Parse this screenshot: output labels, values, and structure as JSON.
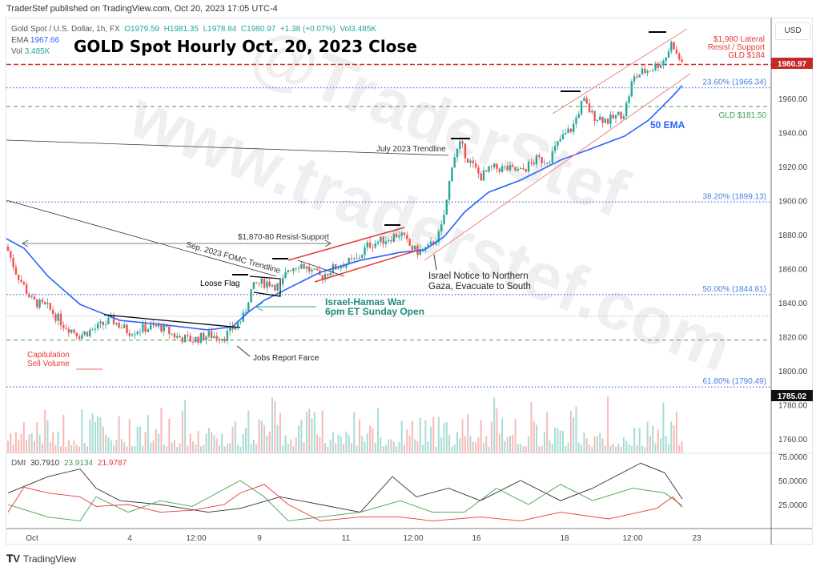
{
  "publisher_line": "TraderStef published on TradingView.com, Oct 20, 2023 17:05 UTC-4",
  "legend": {
    "symbol": "Gold Spot / U.S. Dollar, 1h, FX",
    "open": "O1979.59",
    "high": "H1981.35",
    "low": "L1978.84",
    "close": "C1980.97",
    "change": "+1.38 (+0.07%)",
    "vol": "Vol3.485K",
    "ema_label": "EMA",
    "ema_value": "1967.66",
    "vol_label": "Vol",
    "vol_value": "3.485K"
  },
  "currency_button": "USD",
  "watermark": [
    "@TraderStef",
    "www.traderstef.com"
  ],
  "footer_brand": "TradingView",
  "colors": {
    "up": "#26a69a",
    "down": "#ef5350",
    "ema": "#2962ff",
    "fib": "#4a7fe0",
    "resist": "#e53935",
    "gld": "#43a047"
  },
  "chart_data": {
    "type": "candlestick",
    "title": "GOLD Spot Hourly Oct. 20, 2023 Close",
    "y_ticks": [
      "1960.00",
      "1940.00",
      "1920.00",
      "1900.00",
      "1880.00",
      "1860.00",
      "1840.00",
      "1820.00",
      "1800.00",
      "1780.00",
      "1760.00"
    ],
    "ylim": [
      1752,
      2000
    ],
    "x_ticks": [
      "Oct",
      "4",
      "12:00",
      "9",
      "11",
      "12:00",
      "16",
      "18",
      "12:00",
      "23"
    ],
    "last_price": "1980.97",
    "crosshair_price": "1785.02",
    "close_path": [
      1873,
      1858,
      1841,
      1837,
      1827,
      1821,
      1825,
      1830,
      1823,
      1825,
      1826,
      1820,
      1818,
      1821,
      1820,
      1827,
      1832,
      1846,
      1851,
      1852,
      1849,
      1860,
      1863,
      1858,
      1855,
      1860,
      1863,
      1865,
      1874,
      1877,
      1881,
      1874,
      1870,
      1872,
      1881,
      1900,
      1924,
      1933,
      1924,
      1914,
      1919,
      1919,
      1917,
      1924,
      1924,
      1936,
      1943,
      1959,
      1950,
      1947,
      1952,
      1971,
      1975,
      1978,
      1983,
      1994,
      1985,
      1980.97
    ],
    "ema_50": {
      "label": "50 EMA",
      "values": [
        1877.6,
        1872,
        1855.5,
        1839,
        1829.6,
        1827.3,
        1824,
        1825.9,
        1834.4,
        1841.4,
        1848.5,
        1857.9,
        1864.9,
        1869.6,
        1871,
        1879,
        1893.2,
        1904.9,
        1912,
        1923.8,
        1930.8,
        1937.9,
        1947.3,
        1961.4,
        1967.66
      ]
    },
    "levels": [
      {
        "label": "23.60% (1966.34)",
        "price": 1966.34,
        "style": "fib"
      },
      {
        "label": "38.20% (1899.13)",
        "price": 1899.13,
        "style": "fib"
      },
      {
        "label": "50.00% (1844.81)",
        "price": 1844.81,
        "style": "fib"
      },
      {
        "label": "61.80% (1790.49)",
        "price": 1790.49,
        "style": "fib"
      },
      {
        "label": "GLD $181.50",
        "price": 1955.3,
        "style": "gld"
      },
      {
        "label": "",
        "price": 1818,
        "style": "gld"
      },
      {
        "label": "",
        "price": 1832,
        "style": "grey"
      },
      {
        "label": "",
        "price": 1980,
        "style": "resist"
      }
    ],
    "annotations": {
      "resist_label": [
        "$1,980 Lateral",
        "Resist / Support",
        "GLD $184"
      ],
      "july_trendline": "July 2023 Trendline",
      "fomc_trendline": "Sep. 2023 FOMC Trendline",
      "resist_support": "$1,870-80 Resist-Support",
      "loose_flag": "Loose Flag",
      "war": [
        "Israel-Hamas War",
        "6pm ET Sunday Open"
      ],
      "gaza": [
        "Israel Notice to Northern",
        "Gaza, Evacuate to South"
      ],
      "jobs": "Jobs Report Farce",
      "capitulation": [
        "Capitulation",
        "Sell Volume"
      ]
    },
    "dmi": {
      "label": "DMI",
      "adx": "30.7910",
      "plus_di": "23.9134",
      "minus_di": "21.9787",
      "y_ticks": [
        "75.0000",
        "50.0000",
        "25.0000"
      ],
      "adx_values": [
        37,
        54,
        62,
        42,
        29,
        25,
        17,
        21,
        33,
        25,
        17,
        54,
        33,
        42,
        29,
        50,
        29,
        42,
        68,
        58,
        30.79
      ],
      "plus_values": [
        25,
        12,
        8,
        33,
        17,
        29,
        23,
        50,
        33,
        8,
        12,
        17,
        29,
        17,
        17,
        42,
        25,
        46,
        29,
        42,
        37,
        23.91
      ],
      "minus_values": [
        17,
        43,
        37,
        33,
        23,
        25,
        17,
        19,
        25,
        37,
        46,
        25,
        8,
        12,
        12,
        8,
        12,
        8,
        17,
        10,
        21,
        33,
        21.98
      ]
    }
  }
}
